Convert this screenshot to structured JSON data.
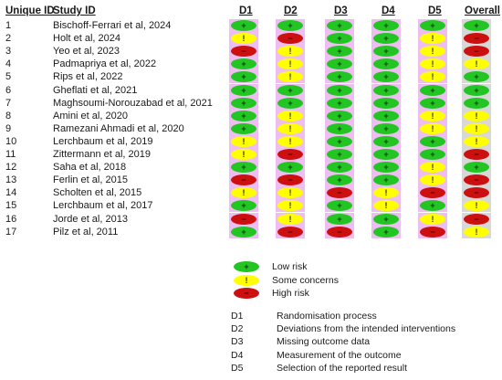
{
  "headers": {
    "unique_id": "Unique ID",
    "study_id": "Study ID",
    "d1": "D1",
    "d2": "D2",
    "d3": "D3",
    "d4": "D4",
    "d5": "D5",
    "overall": "Overall"
  },
  "symbols": {
    "low": "+",
    "some": "!",
    "high": "−"
  },
  "colors": {
    "low": "#22c522",
    "some": "#ffff00",
    "high": "#cc1010",
    "cell_bg": "#eebef3",
    "overall_bg": "#d8d8d8"
  },
  "studies": [
    {
      "id": "1",
      "study": "Bischoff-Ferrari et al, 2024",
      "d": [
        "low",
        "low",
        "low",
        "low",
        "low"
      ],
      "overall": "low"
    },
    {
      "id": "2",
      "study": "Holt et al, 2024",
      "d": [
        "some",
        "high",
        "low",
        "low",
        "some"
      ],
      "overall": "high"
    },
    {
      "id": "3",
      "study": "Yeo et al, 2023",
      "d": [
        "high",
        "some",
        "low",
        "low",
        "some"
      ],
      "overall": "high"
    },
    {
      "id": "4",
      "study": "Padmapriya et al, 2022",
      "d": [
        "low",
        "some",
        "low",
        "low",
        "some"
      ],
      "overall": "some"
    },
    {
      "id": "5",
      "study": "Rips et al, 2022",
      "d": [
        "low",
        "some",
        "low",
        "low",
        "some"
      ],
      "overall": "low"
    },
    {
      "id": "6",
      "study": "Gheflati et al, 2021",
      "d": [
        "low",
        "low",
        "low",
        "low",
        "low"
      ],
      "overall": "low"
    },
    {
      "id": "7",
      "study": "Maghsoumi-Norouzabad et al, 2021",
      "d": [
        "low",
        "low",
        "low",
        "low",
        "low"
      ],
      "overall": "low"
    },
    {
      "id": "8",
      "study": "Amini et al, 2020",
      "d": [
        "low",
        "some",
        "low",
        "low",
        "some"
      ],
      "overall": "some"
    },
    {
      "id": "9",
      "study": "Ramezani Ahmadi et al, 2020",
      "d": [
        "low",
        "some",
        "low",
        "low",
        "some"
      ],
      "overall": "some"
    },
    {
      "id": "10",
      "study": "Lerchbaum et al, 2019",
      "d": [
        "some",
        "some",
        "low",
        "low",
        "low"
      ],
      "overall": "some"
    },
    {
      "id": "11",
      "study": "Zittermann et al, 2019",
      "d": [
        "some",
        "high",
        "low",
        "low",
        "low"
      ],
      "overall": "high"
    },
    {
      "id": "12",
      "study": "Saha et al, 2018",
      "d": [
        "low",
        "low",
        "low",
        "low",
        "some"
      ],
      "overall": "low"
    },
    {
      "id": "13",
      "study": "Ferlin et al, 2015",
      "d": [
        "high",
        "high",
        "low",
        "low",
        "some"
      ],
      "overall": "high"
    },
    {
      "id": "14",
      "study": "Scholten et al, 2015",
      "d": [
        "some",
        "some",
        "high",
        "some",
        "high"
      ],
      "overall": "high"
    },
    {
      "id": "15",
      "study": "Lerchbaum et al, 2017",
      "d": [
        "low",
        "some",
        "low",
        "some",
        "low"
      ],
      "overall": "some"
    },
    {
      "id": "16",
      "study": "Jorde et al, 2013",
      "d": [
        "high",
        "some",
        "low",
        "low",
        "some"
      ],
      "overall": "high"
    },
    {
      "id": "17",
      "study": "Pilz et al, 2011",
      "d": [
        "low",
        "high",
        "high",
        "low",
        "high"
      ],
      "overall": "some"
    }
  ],
  "legend": [
    {
      "level": "low",
      "label": "Low risk"
    },
    {
      "level": "some",
      "label": "Some concerns"
    },
    {
      "level": "high",
      "label": "High risk"
    }
  ],
  "domains": [
    {
      "code": "D1",
      "label": "Randomisation process"
    },
    {
      "code": "D2",
      "label": "Deviations from the intended interventions"
    },
    {
      "code": "D3",
      "label": "Missing outcome data"
    },
    {
      "code": "D4",
      "label": "Measurement of the outcome"
    },
    {
      "code": "D5",
      "label": "Selection of the reported result"
    }
  ]
}
